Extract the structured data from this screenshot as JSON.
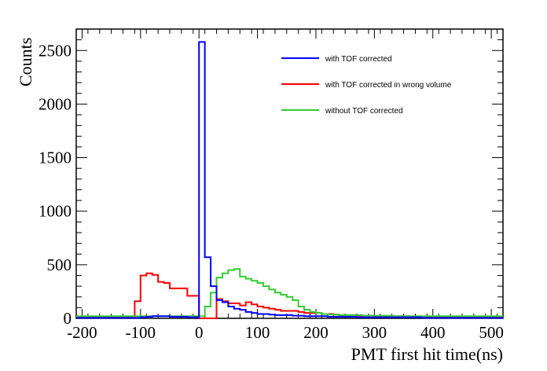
{
  "chart_data": {
    "type": "line",
    "xlabel": "PMT first hit time(ns)",
    "ylabel": "Counts",
    "xlim": [
      -210,
      520
    ],
    "ylim": [
      0,
      2700
    ],
    "bin_width": 10,
    "x_ticks": [
      -200,
      -100,
      0,
      100,
      200,
      300,
      400,
      500
    ],
    "x_tick_labels": [
      "-200",
      "-100",
      "0",
      "100",
      "200",
      "300",
      "400",
      "500"
    ],
    "y_ticks": [
      0,
      500,
      1000,
      1500,
      2000,
      2500
    ],
    "y_tick_labels": [
      "0",
      "500",
      "1000",
      "1500",
      "2000",
      "2500"
    ],
    "legend_position": "top-right",
    "series": [
      {
        "name": "with TOF corrected",
        "color": "#0000ff",
        "x": [
          -210,
          -200,
          -190,
          -180,
          -170,
          -160,
          -150,
          -140,
          -130,
          -120,
          -110,
          -100,
          -90,
          -80,
          -70,
          -60,
          -50,
          -40,
          -30,
          -20,
          -10,
          0,
          10,
          20,
          30,
          40,
          50,
          60,
          70,
          80,
          90,
          100,
          110,
          120,
          130,
          140,
          150,
          160,
          170,
          180,
          190,
          200,
          210,
          220,
          230,
          240,
          250,
          260,
          270,
          280,
          290,
          300,
          310,
          320,
          330,
          340,
          350,
          360,
          370,
          380,
          390,
          400,
          410,
          420,
          430,
          440,
          450,
          460,
          470,
          480,
          490,
          500,
          510
        ],
        "values": [
          5,
          5,
          5,
          5,
          5,
          5,
          5,
          5,
          5,
          5,
          5,
          10,
          15,
          20,
          20,
          20,
          15,
          15,
          15,
          10,
          10,
          2580,
          570,
          300,
          170,
          150,
          110,
          90,
          80,
          60,
          50,
          40,
          40,
          35,
          30,
          30,
          30,
          25,
          25,
          20,
          20,
          20,
          20,
          15,
          15,
          15,
          15,
          15,
          10,
          10,
          10,
          10,
          10,
          10,
          10,
          10,
          10,
          10,
          10,
          5,
          5,
          5,
          5,
          5,
          5,
          5,
          5,
          5,
          5,
          5,
          5,
          5,
          5
        ]
      },
      {
        "name": "with TOF corrected in wrong volume",
        "color": "#ff0000",
        "x": [
          -210,
          -200,
          -190,
          -180,
          -170,
          -160,
          -150,
          -140,
          -130,
          -120,
          -110,
          -100,
          -90,
          -80,
          -70,
          -60,
          -50,
          -40,
          -30,
          -20,
          -10,
          0,
          10,
          20,
          30,
          40,
          50,
          60,
          70,
          80,
          90,
          100,
          110,
          120,
          130,
          140,
          150,
          160,
          170,
          180,
          190,
          200,
          210,
          220,
          230,
          240,
          250,
          260,
          270,
          280,
          290,
          300,
          310,
          320,
          330,
          340,
          350,
          360,
          370,
          380,
          390,
          400,
          410,
          420,
          430,
          440,
          450,
          460,
          470,
          480,
          490,
          500,
          510
        ],
        "values": [
          10,
          10,
          10,
          10,
          10,
          10,
          10,
          10,
          10,
          10,
          160,
          400,
          420,
          405,
          340,
          330,
          280,
          280,
          280,
          210,
          210,
          0,
          0,
          0,
          180,
          160,
          140,
          140,
          120,
          150,
          130,
          110,
          100,
          90,
          80,
          70,
          70,
          70,
          60,
          50,
          50,
          50,
          40,
          40,
          35,
          30,
          30,
          30,
          25,
          25,
          25,
          20,
          20,
          20,
          20,
          20,
          20,
          15,
          15,
          15,
          15,
          15,
          15,
          15,
          15,
          15,
          10,
          10,
          10,
          10,
          10,
          10,
          10
        ]
      },
      {
        "name": "without TOF corrected",
        "color": "#33cc33",
        "x": [
          -210,
          -200,
          -190,
          -180,
          -170,
          -160,
          -150,
          -140,
          -130,
          -120,
          -110,
          -100,
          -90,
          -80,
          -70,
          -60,
          -50,
          -40,
          -30,
          -20,
          -10,
          0,
          10,
          20,
          30,
          40,
          50,
          60,
          70,
          80,
          90,
          100,
          110,
          120,
          130,
          140,
          150,
          160,
          170,
          180,
          190,
          200,
          210,
          220,
          230,
          240,
          250,
          260,
          270,
          280,
          290,
          300,
          310,
          320,
          330,
          340,
          350,
          360,
          370,
          380,
          390,
          400,
          410,
          420,
          430,
          440,
          450,
          460,
          470,
          480,
          490,
          500,
          510
        ],
        "values": [
          20,
          20,
          20,
          20,
          20,
          20,
          20,
          20,
          20,
          20,
          20,
          20,
          20,
          20,
          20,
          20,
          20,
          20,
          20,
          20,
          20,
          20,
          110,
          240,
          380,
          420,
          450,
          460,
          390,
          370,
          350,
          330,
          300,
          270,
          240,
          220,
          200,
          170,
          110,
          80,
          60,
          50,
          40,
          35,
          35,
          30,
          30,
          30,
          30,
          25,
          25,
          25,
          25,
          25,
          20,
          20,
          20,
          20,
          20,
          20,
          20,
          20,
          20,
          20,
          20,
          20,
          20,
          20,
          20,
          20,
          20,
          20,
          20
        ]
      }
    ]
  }
}
